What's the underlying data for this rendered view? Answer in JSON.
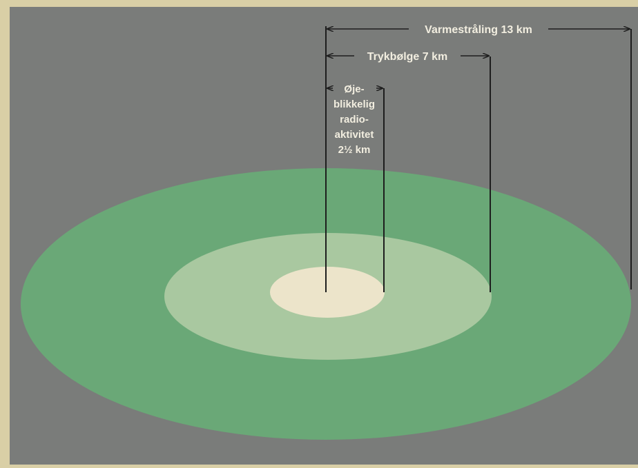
{
  "colors": {
    "paper": "#d9cfa6",
    "background": "#7a7c7a",
    "outer_ring": "#6aa877",
    "middle_ring": "#a9c8a0",
    "inner_ring": "#ece4ca",
    "ink": "#1d1d1d",
    "label_text": "#f2eee0"
  },
  "zones": [
    {
      "id": "varme",
      "label": "Varmestråling 13 km",
      "radius_km": 13
    },
    {
      "id": "tryk",
      "label": "Trykbølge 7 km",
      "radius_km": 7
    },
    {
      "id": "radio",
      "label_lines": [
        "Øje-",
        "blikkelig",
        "radio-",
        "aktivitet",
        "2½ km"
      ],
      "radius_km": 2.5
    }
  ]
}
